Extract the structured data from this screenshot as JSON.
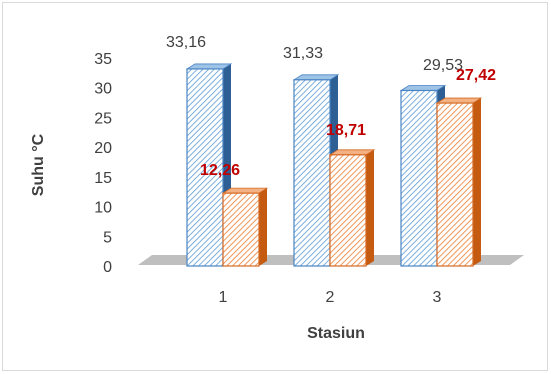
{
  "chart_data": {
    "type": "bar",
    "xlabel": "Stasiun",
    "ylabel": "Suhu °C",
    "categories": [
      "1",
      "2",
      "3"
    ],
    "ylim": [
      0,
      35
    ],
    "yticks": [
      "0",
      "5",
      "10",
      "15",
      "20",
      "25",
      "30",
      "35"
    ],
    "grid": false,
    "legend": "none",
    "series": [
      {
        "values": [
          33.16,
          31.33,
          29.53
        ],
        "labels": [
          "33,16",
          "31,33",
          "29,53"
        ],
        "color": "#5b9bd5",
        "pattern": "diagonal-hatch"
      },
      {
        "values": [
          12.26,
          18.71,
          27.42
        ],
        "labels": [
          "12,26",
          "18,71",
          "27,42"
        ],
        "color": "#ed7d31",
        "pattern": "diagonal-hatch",
        "label_color": "#c00000"
      }
    ]
  }
}
